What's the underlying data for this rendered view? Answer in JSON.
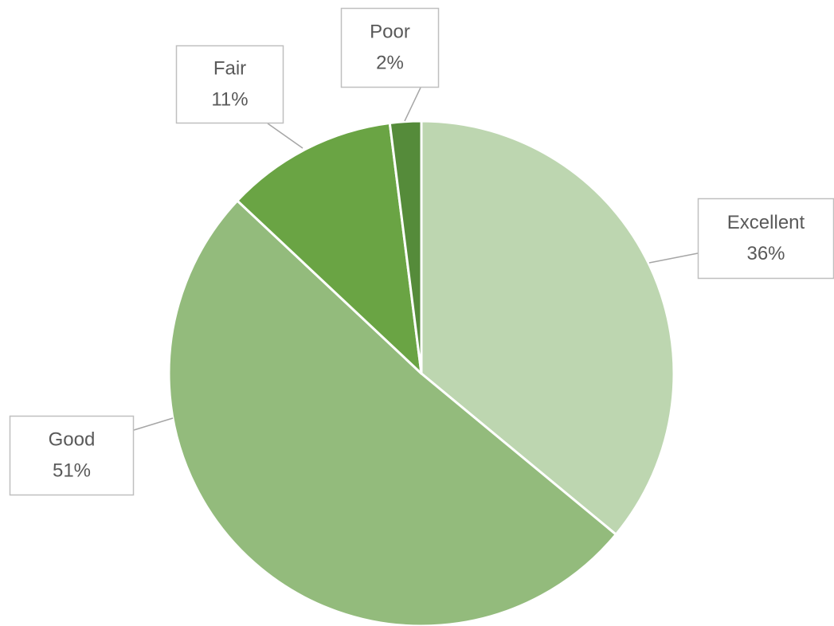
{
  "chart_data": {
    "type": "pie",
    "categories": [
      "Excellent",
      "Good",
      "Fair",
      "Poor"
    ],
    "values": [
      36,
      51,
      11,
      2
    ],
    "value_labels": [
      "36%",
      "51%",
      "11%",
      "2%"
    ],
    "colors": [
      "#bdd6b0",
      "#93bb7c",
      "#6aa444",
      "#558b3a"
    ]
  }
}
